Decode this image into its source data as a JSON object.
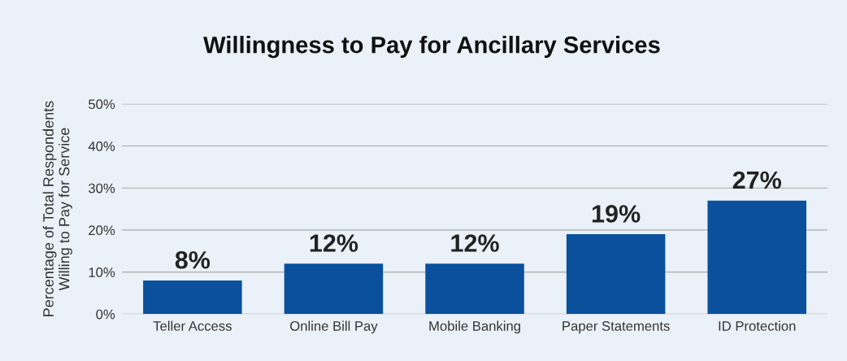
{
  "chart_data": {
    "type": "bar",
    "title": "Willingness to Pay for Ancillary Services",
    "ylabel": "Percentage of Total Respondents\nWilling to Pay for Service",
    "categories": [
      "Teller Access",
      "Online Bill Pay",
      "Mobile Banking",
      "Paper Statements",
      "ID Protection"
    ],
    "values": [
      8,
      12,
      12,
      19,
      27
    ],
    "color": "#0a509c",
    "value_labels": [
      "8%",
      "12%",
      "12%",
      "19%",
      "27%"
    ],
    "ylim": [
      0,
      50
    ],
    "yticks": [
      {
        "value": 0,
        "label": "0%"
      },
      {
        "value": 10,
        "label": "10%"
      },
      {
        "value": 20,
        "label": "20%"
      },
      {
        "value": 30,
        "label": "30%"
      },
      {
        "value": 40,
        "label": "40%"
      },
      {
        "value": 50,
        "label": "50%"
      }
    ],
    "grid": "y"
  }
}
